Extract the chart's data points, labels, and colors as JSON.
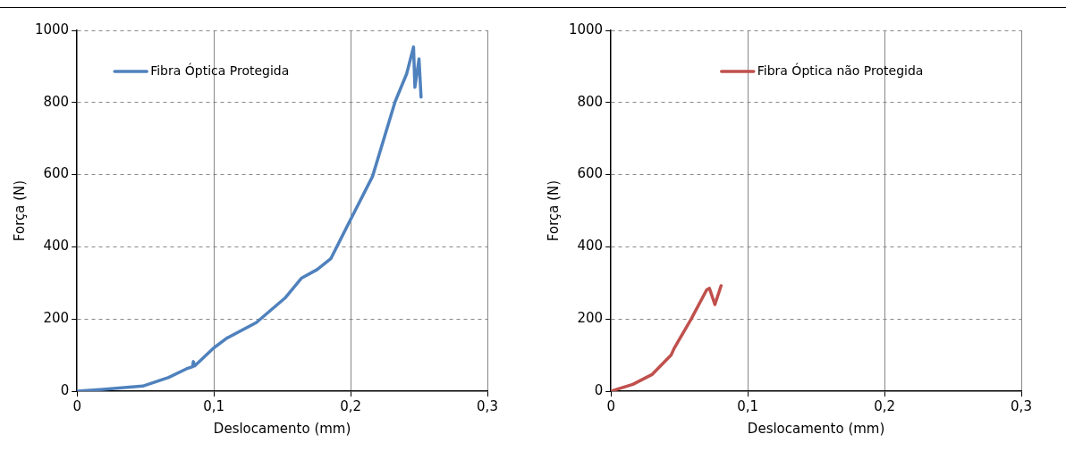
{
  "chart_data": [
    {
      "type": "line",
      "xlabel": "Deslocamento (mm)",
      "ylabel": "Força (N)",
      "xlim": [
        0,
        0.3
      ],
      "ylim": [
        0,
        1000
      ],
      "xticks": [
        0,
        {
          "value": 0.1,
          "label": "0,1"
        },
        {
          "value": 0.2,
          "label": "0,2"
        },
        {
          "value": 0.3,
          "label": "0,3"
        }
      ],
      "yticks": [
        0,
        200,
        400,
        600,
        800,
        1000
      ],
      "grid": true,
      "legend": "top left",
      "marker": "none",
      "line_style": "solid",
      "series": [
        {
          "name": "Fibra Óptica Protegida",
          "color": "#4f81bd",
          "x": [
            0,
            0.019,
            0.048,
            0.067,
            0.08,
            0.0845,
            0.085,
            0.086,
            0.1,
            0.1095,
            0.131,
            0.152,
            0.164,
            0.1755,
            0.1855,
            0.2,
            0.216,
            0.2325,
            0.241,
            0.246,
            0.247,
            0.25,
            0.2515
          ],
          "values": [
            0,
            5,
            14,
            38,
            62,
            68,
            82,
            70,
            120,
            147,
            190,
            258,
            313,
            337,
            367,
            476,
            595,
            802,
            880,
            954,
            842,
            921,
            815
          ]
        }
      ]
    },
    {
      "type": "line",
      "xlabel": "Deslocamento (mm)",
      "ylabel": "Força (N)",
      "xlim": [
        0,
        0.3
      ],
      "ylim": [
        0,
        1000
      ],
      "xticks": [
        0,
        {
          "value": 0.1,
          "label": "0,1"
        },
        {
          "value": 0.2,
          "label": "0,2"
        },
        {
          "value": 0.3,
          "label": "0,3"
        }
      ],
      "yticks": [
        0,
        200,
        400,
        600,
        800,
        1000
      ],
      "grid": true,
      "legend": "top",
      "marker": "none",
      "line_style": "solid",
      "series": [
        {
          "name": "Fibra Óptica não Protegida",
          "color": "#c0504d",
          "x": [
            0,
            0.016,
            0.03,
            0.044,
            0.046,
            0.0585,
            0.07,
            0.072,
            0.076,
            0.0805
          ],
          "values": [
            0,
            19,
            46,
            100,
            117,
            199,
            281,
            285,
            240,
            292
          ]
        }
      ]
    }
  ]
}
